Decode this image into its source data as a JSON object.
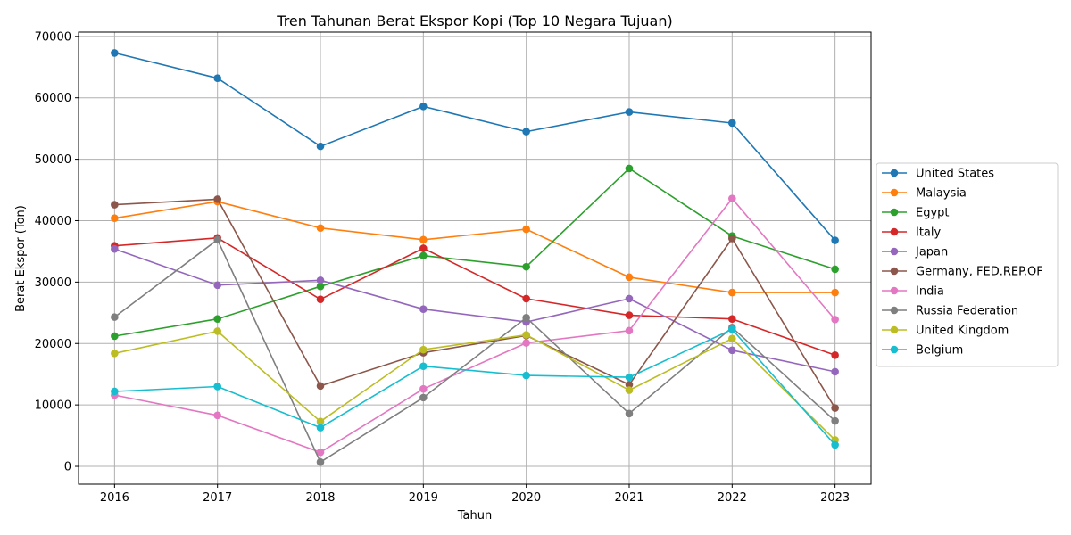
{
  "chart_data": {
    "type": "line",
    "title": "Tren Tahunan Berat Ekspor Kopi (Top 10 Negara Tujuan)",
    "xlabel": "Tahun",
    "ylabel": "Berat Ekspor (Ton)",
    "x": [
      2016,
      2017,
      2018,
      2019,
      2020,
      2021,
      2022,
      2023
    ],
    "xlim": [
      2015.65,
      2023.35
    ],
    "ylim": [
      -2900,
      70700
    ],
    "yticks": [
      0,
      10000,
      20000,
      30000,
      40000,
      50000,
      60000,
      70000
    ],
    "grid": true,
    "legend_position": "right-outside",
    "series": [
      {
        "name": "United States",
        "color": "#1f77b4",
        "values": [
          67300,
          63200,
          52100,
          58600,
          54500,
          57700,
          55900,
          36800
        ]
      },
      {
        "name": "Malaysia",
        "color": "#ff7f0e",
        "values": [
          40400,
          43100,
          38800,
          36900,
          38600,
          30800,
          28300,
          28300
        ]
      },
      {
        "name": "Egypt",
        "color": "#2ca02c",
        "values": [
          21200,
          24000,
          29300,
          34300,
          32500,
          48500,
          37500,
          32100
        ]
      },
      {
        "name": "Italy",
        "color": "#d62728",
        "values": [
          35900,
          37200,
          27200,
          35500,
          27300,
          24600,
          24000,
          18100
        ]
      },
      {
        "name": "Japan",
        "color": "#9467bd",
        "values": [
          35400,
          29500,
          30300,
          25600,
          23500,
          27300,
          18900,
          15400
        ]
      },
      {
        "name": "Germany, FED.REP.OF",
        "color": "#8c564b",
        "values": [
          42600,
          43500,
          13100,
          18500,
          21300,
          13300,
          37100,
          9500
        ]
      },
      {
        "name": "India",
        "color": "#e377c2",
        "values": [
          11600,
          8300,
          2300,
          12600,
          20100,
          22100,
          43600,
          23900
        ]
      },
      {
        "name": "Russia Federation",
        "color": "#7f7f7f",
        "values": [
          24300,
          36900,
          700,
          11200,
          24200,
          8600,
          22600,
          7400
        ]
      },
      {
        "name": "United Kingdom",
        "color": "#bcbd22",
        "values": [
          18400,
          22000,
          7300,
          19000,
          21400,
          12400,
          20800,
          4300
        ]
      },
      {
        "name": "Belgium",
        "color": "#17becf",
        "values": [
          12200,
          13000,
          6300,
          16300,
          14800,
          14500,
          22300,
          3500
        ]
      }
    ]
  }
}
